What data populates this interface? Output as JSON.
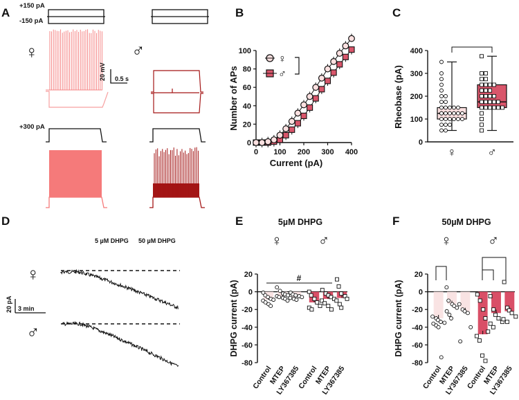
{
  "panels": {
    "A": "A",
    "B": "B",
    "C": "C",
    "D": "D",
    "E": "E",
    "F": "F"
  },
  "sex": {
    "female": "♀",
    "male": "♂"
  },
  "colors": {
    "female": "#f7a1a1",
    "female_dark": "#f57a7a",
    "male": "#a31515",
    "female_fill": "#fbe0e0",
    "male_fill": "#d9566b",
    "bar_female": "#f9e3e3",
    "bar_male": "#d94f67"
  },
  "panelA": {
    "step_top_label": "+150 pA",
    "step_bottom_label": "-150 pA",
    "ramp_label": "+300 pA",
    "scale_v": "20 mV",
    "scale_t": "0.5 s"
  },
  "panelD": {
    "dhpg_low": "5 µM DHPG",
    "dhpg_high": "50 µM DHPG",
    "scale_i": "20 pA",
    "scale_t": "3 min"
  },
  "chart_data": [
    {
      "panel": "B",
      "type": "line",
      "xlabel": "Current (pA)",
      "ylabel": "Number of APs",
      "xlim": [
        0,
        400
      ],
      "ylim": [
        0,
        100
      ],
      "xticks": [
        "0",
        "100",
        "200",
        "300",
        "400"
      ],
      "yticks": [
        "0",
        "20",
        "40",
        "60",
        "80",
        "100"
      ],
      "x": [
        0,
        25,
        50,
        75,
        100,
        125,
        150,
        175,
        200,
        225,
        250,
        275,
        300,
        325,
        350,
        375,
        400
      ],
      "series": [
        {
          "name": "♀",
          "marker": "circle",
          "values": [
            0,
            0,
            1,
            3,
            8,
            15,
            23,
            32,
            41,
            50,
            60,
            70,
            80,
            88,
            97,
            105,
            113
          ]
        },
        {
          "name": "♂",
          "marker": "square",
          "values": [
            0,
            0,
            0,
            1,
            3,
            8,
            14,
            21,
            29,
            38,
            48,
            58,
            67,
            76,
            85,
            93,
            101
          ]
        }
      ]
    },
    {
      "panel": "C",
      "type": "box",
      "ylabel": "Rheobase (pA)",
      "ylim": [
        0,
        400
      ],
      "yticks": [
        "0",
        "100",
        "200",
        "300",
        "400"
      ],
      "categories": [
        "♀",
        "♂"
      ],
      "stats": [
        {
          "min": 50,
          "q1": 100,
          "median": 125,
          "q3": 150,
          "max": 350
        },
        {
          "min": 50,
          "q1": 150,
          "median": 175,
          "q3": 250,
          "max": 375
        }
      ],
      "points": [
        [
          50,
          50,
          75,
          75,
          75,
          100,
          100,
          100,
          100,
          100,
          100,
          125,
          125,
          125,
          125,
          125,
          125,
          125,
          150,
          150,
          150,
          150,
          150,
          175,
          175,
          200,
          200,
          225,
          250,
          275,
          300,
          350
        ],
        [
          50,
          75,
          100,
          125,
          150,
          150,
          150,
          150,
          150,
          150,
          175,
          175,
          175,
          175,
          175,
          200,
          200,
          200,
          200,
          225,
          225,
          225,
          250,
          250,
          250,
          250,
          275,
          275,
          300,
          300,
          375
        ]
      ]
    },
    {
      "panel": "E",
      "type": "bar",
      "title": "5µM DHPG",
      "ylabel": "DHPG current (pA)",
      "ylim": [
        -80,
        20
      ],
      "yticks": [
        "20",
        "0",
        "-20",
        "-40",
        "-60",
        "-80"
      ],
      "categories": [
        "Control",
        "MTEP",
        "LY367385",
        "Control",
        "MTEP",
        "LY367385"
      ],
      "groups": [
        "♀",
        "♀",
        "♀",
        "♂",
        "♂",
        "♂"
      ],
      "values": [
        -9,
        -5,
        -6,
        -12,
        -8,
        -7
      ],
      "annotation": "#",
      "points": [
        [
          -1,
          -4,
          -6,
          -8,
          -9,
          -10,
          -12,
          -14,
          -16
        ],
        [
          5,
          1,
          -2,
          -3,
          -4,
          -5,
          -6,
          -7,
          -8,
          -10
        ],
        [
          -1,
          -3,
          -4,
          -5,
          -6,
          -7,
          -8,
          -9
        ],
        [
          0,
          -4,
          -8,
          -12,
          -16,
          -18,
          -20
        ],
        [
          2,
          -2,
          -4,
          -6,
          -8,
          -10,
          -13,
          -16,
          -20
        ],
        [
          14,
          6,
          -2,
          -5,
          -8,
          -10,
          -14,
          -18
        ]
      ]
    },
    {
      "panel": "F",
      "type": "bar",
      "title": "50µM DHPG",
      "ylabel": "DHPG current (pA)",
      "ylim": [
        -80,
        20
      ],
      "yticks": [
        "20",
        "0",
        "-20",
        "-40",
        "-60",
        "-80"
      ],
      "categories": [
        "Control",
        "MTEP",
        "LY367385",
        "Control",
        "MTEP",
        "LY367385"
      ],
      "groups": [
        "♀",
        "♀",
        "♀",
        "♂",
        "♂",
        "♂"
      ],
      "values": [
        -30,
        -14,
        -22,
        -48,
        -24,
        -22
      ],
      "points": [
        [
          -28,
          -30,
          -32,
          -34,
          -35,
          -36,
          -38,
          -40,
          -74
        ],
        [
          5,
          -10,
          -14,
          -16,
          -18,
          -22,
          -26,
          -30
        ],
        [
          -14,
          -20,
          -22,
          -24,
          -40,
          -56
        ],
        [
          -3,
          -10,
          -20,
          -30,
          -45,
          -50,
          -55,
          -72,
          -78
        ],
        [
          -5,
          -20,
          -26,
          -30,
          -34,
          -36,
          -40
        ],
        [
          11,
          -18,
          -21,
          -24,
          -28,
          -31,
          -34
        ]
      ]
    }
  ]
}
